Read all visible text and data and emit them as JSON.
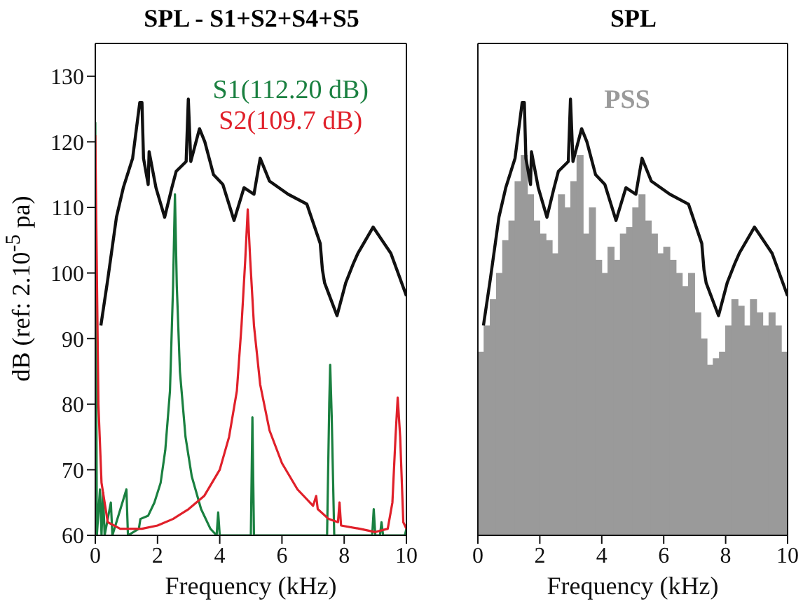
{
  "chart_data": [
    {
      "type": "line",
      "title": "SPL - S1+S2+S4+S5",
      "xlabel": "Frequency (kHz)",
      "ylabel": "dB (ref: 2.10$^{-5}$ pa)",
      "xlim": [
        0,
        10
      ],
      "xticks": [
        0,
        2,
        4,
        6,
        8,
        10
      ],
      "ylim": [
        60,
        135
      ],
      "yticks": [
        60,
        70,
        80,
        90,
        100,
        110,
        120,
        130
      ],
      "series": [
        {
          "color": "#111111",
          "x": [
            0.18,
            0.4,
            0.68,
            0.9,
            1.2,
            1.43,
            1.5,
            1.55,
            1.7,
            1.73,
            1.95,
            2.23,
            2.46,
            2.6,
            2.92,
            2.99,
            3.07,
            3.35,
            3.52,
            3.8,
            4.1,
            4.46,
            4.78,
            5.1,
            5.3,
            5.6,
            6.2,
            6.8,
            7.23,
            7.3,
            7.37,
            7.77,
            8.05,
            8.3,
            8.44,
            8.93,
            9.5,
            9.77,
            10
          ],
          "values": [
            92,
            99,
            108.5,
            113,
            117.5,
            126,
            126,
            117.5,
            113.5,
            118.5,
            113,
            108.5,
            113,
            115.5,
            117,
            126.5,
            117,
            122,
            120,
            115,
            113.5,
            108,
            113,
            112,
            117.5,
            114,
            112,
            110.5,
            104.5,
            100.5,
            98.5,
            93.5,
            98.5,
            101.5,
            103,
            107,
            103,
            99.5,
            96.5
          ]
        },
        {
          "name": "S1(112.20 dB)",
          "color": "#1a8040",
          "x": [
            0,
            0.05,
            0.15,
            0.2,
            0.25,
            0.3,
            0.5,
            0.55,
            1.0,
            1.05,
            1.4,
            1.45,
            1.7,
            1.9,
            2.1,
            2.25,
            2.4,
            2.5,
            2.56,
            2.62,
            2.72,
            2.9,
            3.1,
            3.4,
            3.7,
            3.9,
            3.95,
            4.0,
            5.0,
            5.05,
            5.1,
            7.45,
            7.52,
            7.55,
            7.6,
            7.68,
            8.9,
            8.95,
            9.0,
            9.15,
            9.2,
            9.25,
            9.95,
            10
          ],
          "values": [
            123,
            60,
            67,
            60,
            66.5,
            60,
            65,
            60,
            67,
            60,
            61,
            62.5,
            63,
            65,
            68,
            73,
            82,
            98,
            112,
            98,
            85,
            75,
            69,
            64,
            61,
            60,
            63.5,
            60,
            60,
            78,
            60,
            60,
            80,
            86,
            78,
            60,
            60,
            64,
            60,
            60,
            62,
            60,
            60,
            61
          ]
        },
        {
          "name": "S2(109.7 dB)",
          "color": "#e0202a",
          "x": [
            0,
            0.05,
            0.1,
            0.2,
            0.4,
            0.8,
            1.5,
            2.0,
            2.5,
            3.0,
            3.5,
            4.0,
            4.3,
            4.55,
            4.7,
            4.82,
            4.9,
            4.98,
            5.1,
            5.3,
            5.6,
            6.0,
            6.5,
            7.0,
            7.1,
            7.15,
            7.5,
            7.8,
            7.85,
            7.9,
            8.5,
            9.0,
            9.4,
            9.55,
            9.65,
            9.72,
            9.8,
            9.9,
            10
          ],
          "values": [
            121,
            100,
            80,
            68,
            62,
            61,
            61,
            61.5,
            62.5,
            64,
            66,
            70,
            75,
            82,
            92,
            102,
            109.7,
            102,
            92,
            83,
            76,
            71,
            67,
            64.5,
            66,
            64,
            62.5,
            62,
            65,
            61.5,
            61,
            60.5,
            61,
            65,
            75,
            81,
            75,
            62,
            61
          ]
        }
      ]
    },
    {
      "type": "line",
      "title": "SPL",
      "xlabel": "Frequency (kHz)",
      "xlim": [
        0,
        10
      ],
      "xticks": [
        0,
        2,
        4,
        6,
        8,
        10
      ],
      "ylim": [
        60,
        135
      ],
      "yticks": [
        60,
        70,
        80,
        90,
        100,
        110,
        120,
        130
      ],
      "tick_labels": "x",
      "series": [
        {
          "type": "bar",
          "name": "PSS",
          "color": "#9a9a9a",
          "x": [
            0.1,
            0.3,
            0.5,
            0.7,
            0.9,
            1.1,
            1.3,
            1.5,
            1.7,
            1.9,
            2.1,
            2.3,
            2.5,
            2.7,
            2.9,
            3.1,
            3.3,
            3.5,
            3.7,
            3.9,
            4.1,
            4.3,
            4.5,
            4.7,
            4.9,
            5.1,
            5.3,
            5.5,
            5.7,
            5.9,
            6.1,
            6.3,
            6.5,
            6.7,
            6.9,
            7.1,
            7.3,
            7.5,
            7.7,
            7.9,
            8.1,
            8.3,
            8.5,
            8.7,
            8.9,
            9.1,
            9.3,
            9.5,
            9.7,
            9.9
          ],
          "values": [
            88,
            92,
            96,
            100,
            105,
            108,
            114,
            118,
            112,
            108,
            106,
            105,
            103,
            112,
            110,
            114,
            118,
            106,
            110,
            102,
            100,
            104,
            102,
            106,
            107,
            110,
            112,
            108,
            106,
            103,
            104,
            102,
            100,
            98,
            100,
            94,
            90,
            86,
            87,
            88,
            92,
            96,
            95,
            92,
            96,
            94,
            92,
            94,
            92,
            88
          ]
        },
        {
          "color": "#111111",
          "x": [
            0.18,
            0.4,
            0.68,
            0.9,
            1.2,
            1.43,
            1.5,
            1.55,
            1.7,
            1.73,
            1.95,
            2.23,
            2.46,
            2.6,
            2.92,
            2.99,
            3.07,
            3.35,
            3.52,
            3.8,
            4.1,
            4.46,
            4.78,
            5.1,
            5.3,
            5.6,
            6.2,
            6.8,
            7.23,
            7.3,
            7.37,
            7.77,
            8.05,
            8.3,
            8.44,
            8.93,
            9.5,
            9.77,
            10
          ],
          "values": [
            92,
            99,
            108.5,
            113,
            117.5,
            126,
            126,
            117.5,
            113.5,
            118.5,
            113,
            108.5,
            113,
            115.5,
            117,
            126.5,
            117,
            122,
            120,
            115,
            113.5,
            108,
            113,
            112,
            117.5,
            114,
            112,
            110.5,
            104.5,
            100.5,
            98.5,
            93.5,
            98.5,
            101.5,
            103,
            107,
            103,
            99.5,
            96.5
          ]
        }
      ]
    }
  ]
}
